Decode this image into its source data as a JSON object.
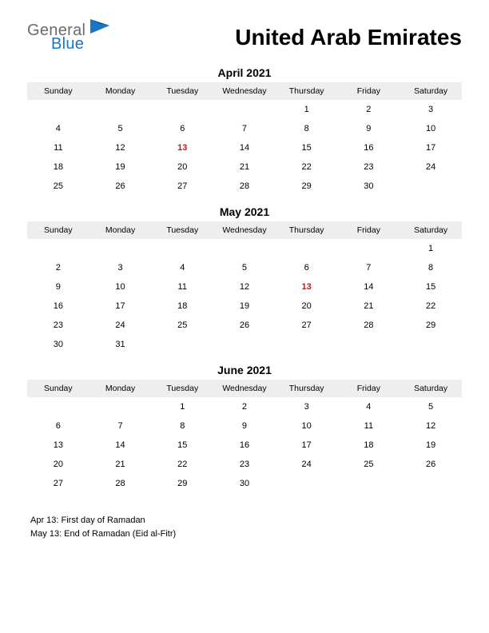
{
  "logo": {
    "text_top": "General",
    "text_bottom": "Blue",
    "color_top": "#6b6b6b",
    "color_bottom": "#1976c4",
    "mark_color_dark": "#0d5a9e",
    "mark_color_light": "#1976c4"
  },
  "page_title": "United Arab Emirates",
  "colors": {
    "background": "#ffffff",
    "header_row_bg": "#eeeeee",
    "text": "#000000",
    "holiday": "#c21717"
  },
  "typography": {
    "title_fontsize": 28,
    "month_fontsize": 14,
    "weekday_fontsize": 10.5,
    "cell_fontsize": 11,
    "notes_fontsize": 11
  },
  "weekdays": [
    "Sunday",
    "Monday",
    "Tuesday",
    "Wednesday",
    "Thursday",
    "Friday",
    "Saturday"
  ],
  "months": [
    {
      "title": "April 2021",
      "weeks": [
        [
          "",
          "",
          "",
          "",
          "1",
          "2",
          "3"
        ],
        [
          "4",
          "5",
          "6",
          "7",
          "8",
          "9",
          "10"
        ],
        [
          "11",
          "12",
          "13",
          "14",
          "15",
          "16",
          "17"
        ],
        [
          "18",
          "19",
          "20",
          "21",
          "22",
          "23",
          "24"
        ],
        [
          "25",
          "26",
          "27",
          "28",
          "29",
          "30",
          ""
        ]
      ],
      "holidays": [
        "13"
      ]
    },
    {
      "title": "May 2021",
      "weeks": [
        [
          "",
          "",
          "",
          "",
          "",
          "",
          "1"
        ],
        [
          "2",
          "3",
          "4",
          "5",
          "6",
          "7",
          "8"
        ],
        [
          "9",
          "10",
          "11",
          "12",
          "13",
          "14",
          "15"
        ],
        [
          "16",
          "17",
          "18",
          "19",
          "20",
          "21",
          "22"
        ],
        [
          "23",
          "24",
          "25",
          "26",
          "27",
          "28",
          "29"
        ],
        [
          "30",
          "31",
          "",
          "",
          "",
          "",
          ""
        ]
      ],
      "holidays": [
        "13"
      ]
    },
    {
      "title": "June 2021",
      "weeks": [
        [
          "",
          "",
          "1",
          "2",
          "3",
          "4",
          "5"
        ],
        [
          "6",
          "7",
          "8",
          "9",
          "10",
          "11",
          "12"
        ],
        [
          "13",
          "14",
          "15",
          "16",
          "17",
          "18",
          "19"
        ],
        [
          "20",
          "21",
          "22",
          "23",
          "24",
          "25",
          "26"
        ],
        [
          "27",
          "28",
          "29",
          "30",
          "",
          "",
          ""
        ]
      ],
      "holidays": []
    }
  ],
  "notes": [
    "Apr 13: First day of Ramadan",
    "May 13: End of Ramadan (Eid al-Fitr)"
  ]
}
